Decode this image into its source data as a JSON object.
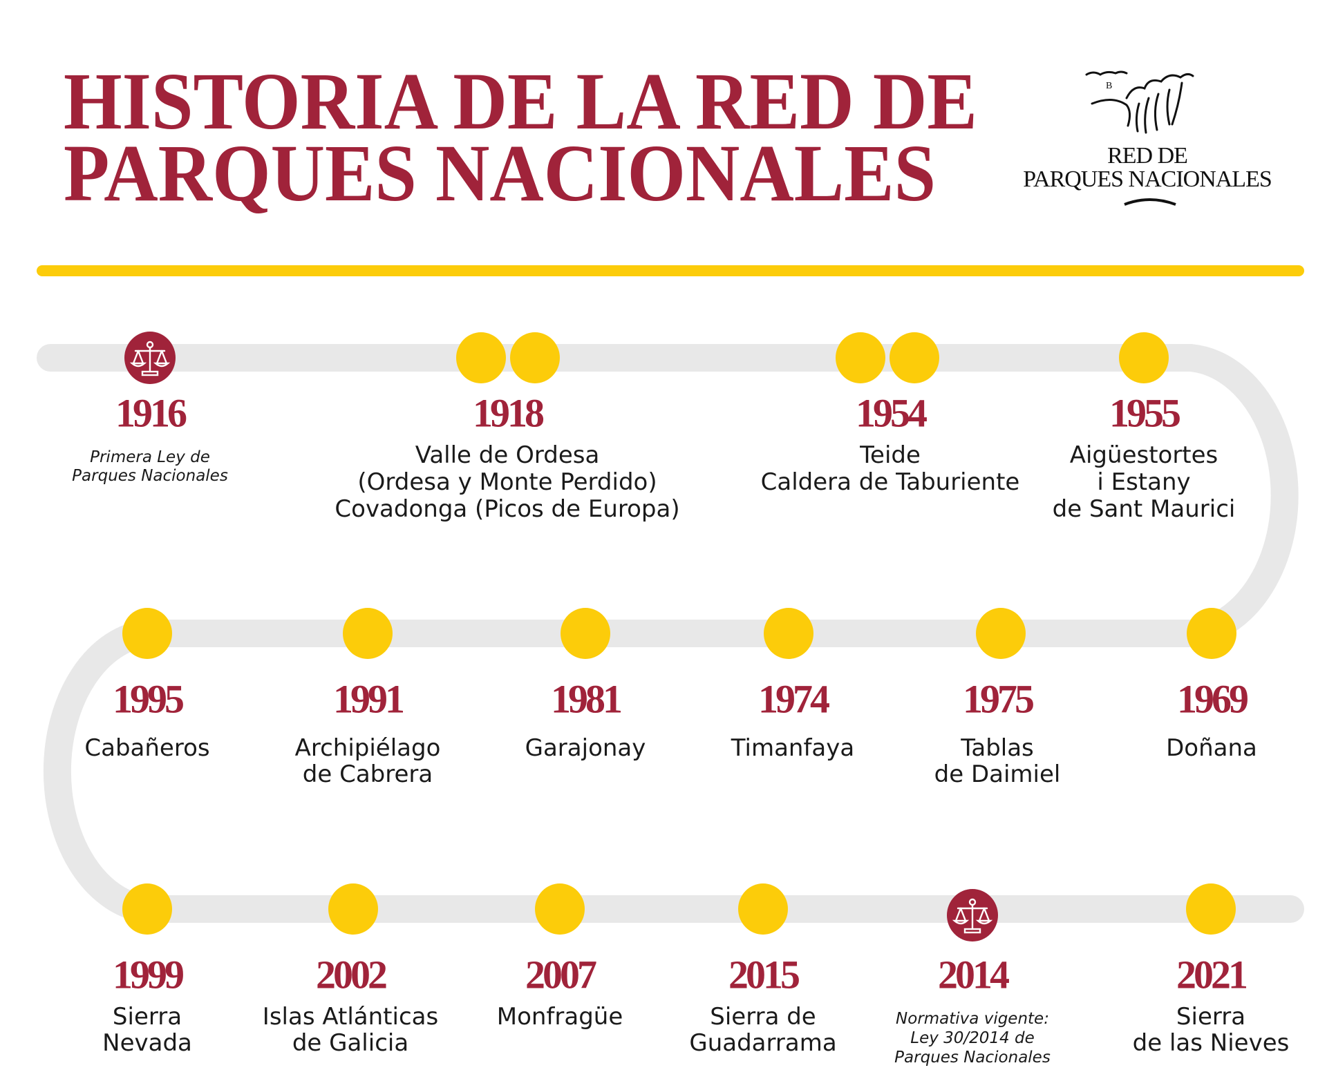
{
  "title": {
    "line1": "HISTORIA DE LA RED DE",
    "line2": "PARQUES NACIONALES"
  },
  "logo": {
    "line1": "RED DE",
    "line2": "PARQUES NACIONALES"
  },
  "colors": {
    "accent": "#a0233a",
    "dot": "#fccc0a",
    "track": "#e8e8e8",
    "bar": "#fccc0a"
  },
  "events": [
    {
      "year": "1916",
      "marker": "law-scale-icon",
      "italic": true,
      "lines": [
        "Primera Ley de",
        "Parques Nacionales"
      ]
    },
    {
      "year": "1918",
      "marker": "double-dot",
      "lines": [
        "Valle de Ordesa",
        "(Ordesa y Monte Perdido)",
        "Covadonga (Picos de Europa)"
      ]
    },
    {
      "year": "1954",
      "marker": "double-dot",
      "lines": [
        "Teide",
        "Caldera de Taburiente"
      ]
    },
    {
      "year": "1955",
      "marker": "dot",
      "lines": [
        "Aigüestortes",
        "i Estany",
        "de Sant Maurici"
      ]
    },
    {
      "year": "1995",
      "marker": "dot",
      "lines": [
        "Cabañeros"
      ]
    },
    {
      "year": "1991",
      "marker": "dot",
      "lines": [
        "Archipiélago",
        "de Cabrera"
      ]
    },
    {
      "year": "1981",
      "marker": "dot",
      "lines": [
        "Garajonay"
      ]
    },
    {
      "year": "1974",
      "marker": "dot",
      "lines": [
        "Timanfaya"
      ]
    },
    {
      "year": "1975",
      "marker": "dot",
      "lines": [
        "Tablas",
        "de Daimiel"
      ]
    },
    {
      "year": "1969",
      "marker": "dot",
      "lines": [
        "Doñana"
      ]
    },
    {
      "year": "1999",
      "marker": "dot",
      "lines": [
        "Sierra",
        "Nevada"
      ]
    },
    {
      "year": "2002",
      "marker": "dot",
      "lines": [
        "Islas Atlánticas",
        "de Galicia"
      ]
    },
    {
      "year": "2007",
      "marker": "dot",
      "lines": [
        "Monfragüe"
      ]
    },
    {
      "year": "2015",
      "marker": "dot",
      "lines": [
        "Sierra de",
        "Guadarrama"
      ]
    },
    {
      "year": "2014",
      "marker": "law-scale-icon",
      "italic": true,
      "lines": [
        "Normativa vigente:",
        "Ley 30/2014 de",
        "Parques Nacionales"
      ]
    },
    {
      "year": "2021",
      "marker": "dot",
      "lines": [
        "Sierra",
        "de las Nieves"
      ]
    }
  ]
}
